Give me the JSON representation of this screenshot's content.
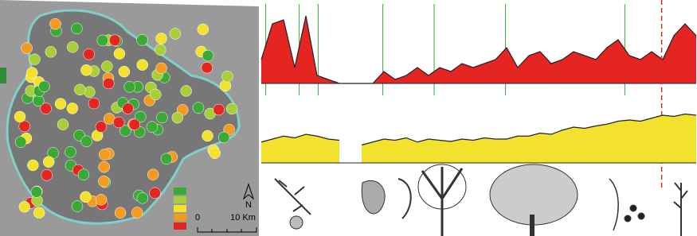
{
  "map": {
    "north": "N",
    "scale_start": "0",
    "scale_end": "10 Km",
    "legend_colors": [
      "#3aa935",
      "#a8cf38",
      "#f2e22e",
      "#f39a1f",
      "#e52521"
    ]
  },
  "chart_data": [
    {
      "type": "area",
      "color": "#e52521",
      "line_color": "#222222",
      "ylim": [
        0,
        100
      ],
      "reference_lines": [
        0.4,
        3.4,
        5.1,
        10.9,
        15.5,
        21.9,
        32.6
      ],
      "reference_color": "#3aa935",
      "highlight": 35.9,
      "highlight_color": "#d62728",
      "values": [
        30,
        75,
        80,
        20,
        85,
        10,
        5,
        0,
        0,
        0,
        0,
        15,
        5,
        10,
        20,
        10,
        20,
        15,
        25,
        20,
        25,
        30,
        45,
        20,
        35,
        40,
        25,
        30,
        40,
        35,
        30,
        45,
        55,
        35,
        30,
        40,
        30,
        60,
        75,
        60
      ]
    },
    {
      "type": "area",
      "color": "#f2e22e",
      "line_color": "#222222",
      "ylim": [
        0,
        100
      ],
      "values": [
        35,
        40,
        45,
        42,
        48,
        45,
        40,
        38,
        null,
        30,
        35,
        40,
        38,
        42,
        35,
        40,
        38,
        36,
        40,
        38,
        42,
        40,
        40,
        45,
        45,
        50,
        48,
        55,
        60,
        58,
        62,
        65,
        70,
        72,
        70,
        75,
        80,
        78,
        82,
        80
      ]
    }
  ]
}
